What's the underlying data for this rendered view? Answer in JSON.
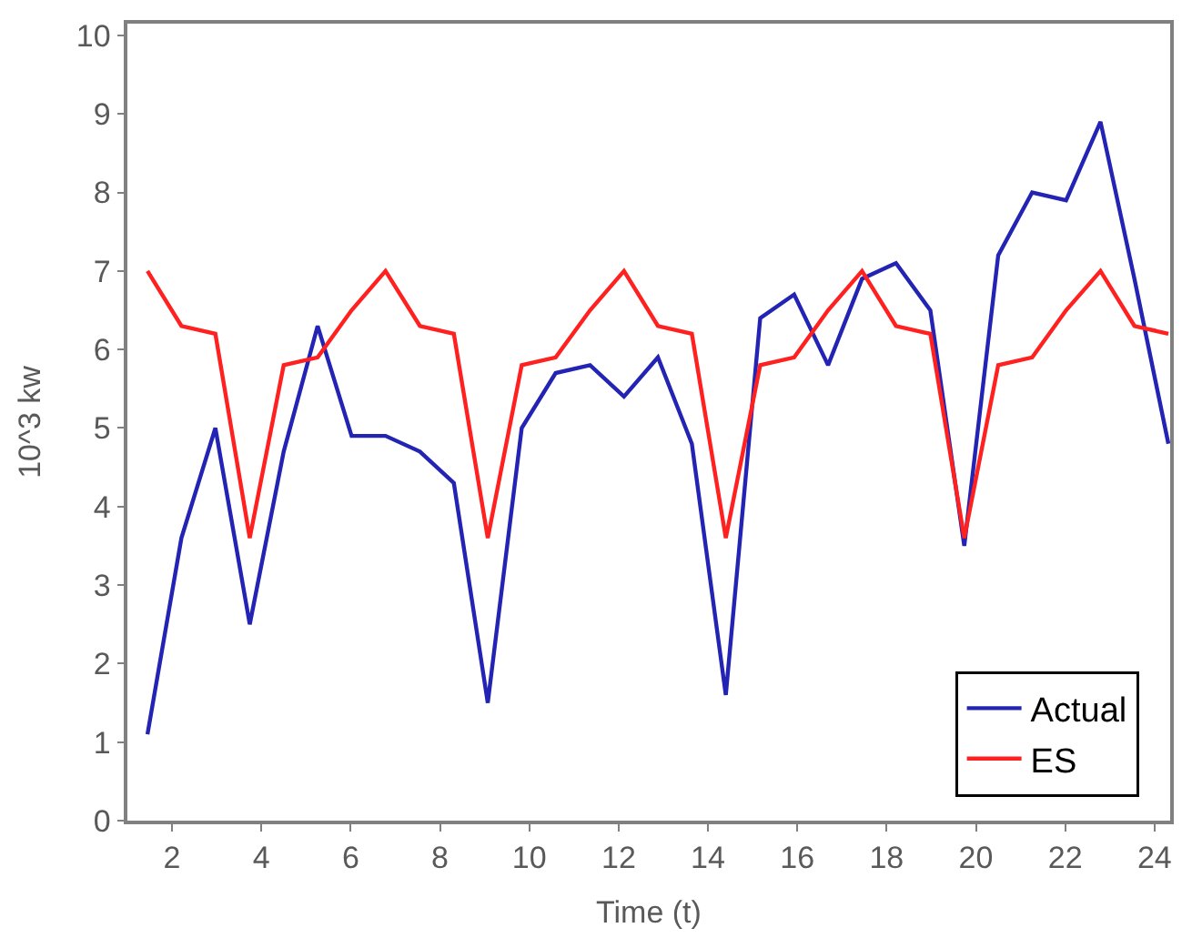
{
  "chart_data": {
    "type": "line",
    "xlabel": "Time (t)",
    "ylabel": "10^3 kw",
    "x": [
      1.45,
      2.21,
      2.97,
      3.74,
      4.5,
      5.26,
      6.02,
      6.78,
      7.55,
      8.31,
      9.07,
      9.83,
      10.59,
      11.36,
      12.12,
      12.88,
      13.64,
      14.4,
      15.17,
      15.93,
      16.69,
      17.45,
      18.21,
      18.98,
      19.74,
      20.5,
      21.26,
      22.02,
      22.79,
      23.55,
      24.31
    ],
    "series": [
      {
        "name": "Actual",
        "color": "#2424b4",
        "values": [
          1.1,
          3.6,
          5.0,
          2.5,
          4.7,
          6.3,
          4.9,
          4.9,
          4.7,
          4.3,
          1.5,
          5.0,
          5.7,
          5.8,
          5.4,
          5.9,
          4.8,
          1.6,
          6.4,
          6.7,
          5.8,
          6.9,
          7.1,
          6.5,
          3.5,
          7.2,
          8.0,
          7.9,
          8.9,
          6.9,
          4.8
        ]
      },
      {
        "name": "ES",
        "color": "#ff2020",
        "values": [
          7.0,
          6.3,
          6.2,
          3.6,
          5.8,
          5.9,
          6.5,
          7.0,
          6.3,
          6.2,
          3.6,
          5.8,
          5.9,
          6.5,
          7.0,
          6.3,
          6.2,
          3.6,
          5.8,
          5.9,
          6.5,
          7.0,
          6.3,
          6.2,
          3.6,
          5.8,
          5.9,
          6.5,
          7.0,
          6.3,
          6.2
        ]
      }
    ],
    "xlim": [
      1.0,
      24.35
    ],
    "xticks": [
      2,
      4,
      6,
      8,
      10,
      12,
      14,
      16,
      18,
      20,
      22,
      24
    ],
    "ylim": [
      0,
      10.15
    ],
    "yticks": [
      0,
      1,
      2,
      3,
      4,
      5,
      6,
      7,
      8,
      9,
      10
    ],
    "legend": "bottom right",
    "marker": "none",
    "line_style": "solid"
  }
}
